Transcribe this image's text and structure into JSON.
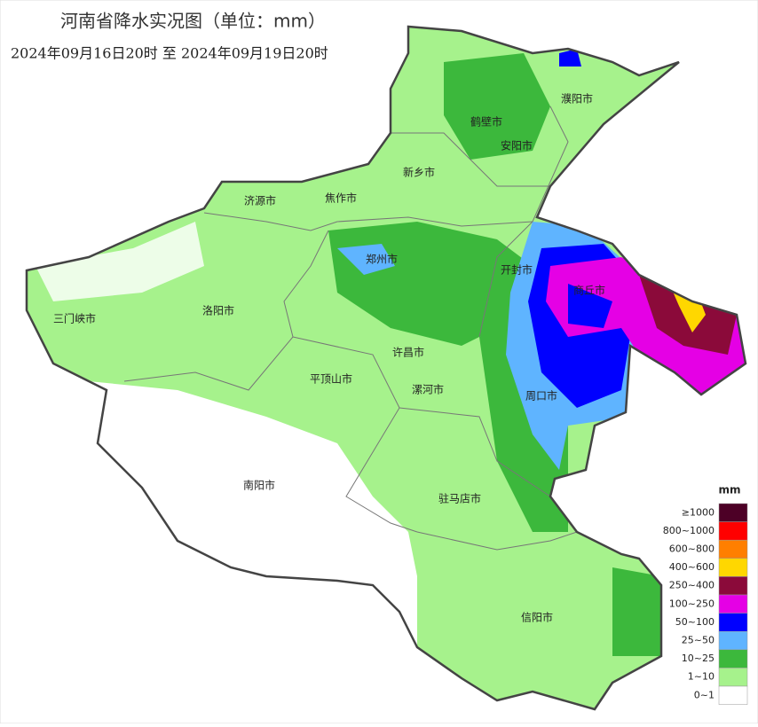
{
  "header": {
    "title": "河南省降水实况图（单位：mm）",
    "subtitle": "2024年09月16日20时   至   2024年09月19日20时"
  },
  "cities": [
    "濮阳市",
    "鹤壁市",
    "安阳市",
    "新乡市",
    "济源市",
    "焦作市",
    "郑州市",
    "开封市",
    "商丘市",
    "三门峡市",
    "洛阳市",
    "许昌市",
    "平顶山市",
    "漯河市",
    "周口市",
    "南阳市",
    "驻马店市",
    "信阳市"
  ],
  "legend": {
    "unit": "mm",
    "items": [
      {
        "label": "≥1000",
        "color": "#4d0026"
      },
      {
        "label": "800~1000",
        "color": "#ff0000"
      },
      {
        "label": "600~800",
        "color": "#ff7f00"
      },
      {
        "label": "400~600",
        "color": "#ffd700"
      },
      {
        "label": "250~400",
        "color": "#8b0a3a"
      },
      {
        "label": "100~250",
        "color": "#e500e5"
      },
      {
        "label": "50~100",
        "color": "#0000ff"
      },
      {
        "label": "25~50",
        "color": "#5fb4ff"
      },
      {
        "label": "10~25",
        "color": "#3cb83c"
      },
      {
        "label": "1~10",
        "color": "#a6f28c"
      },
      {
        "label": "0~1",
        "color": "#ffffff"
      }
    ]
  }
}
